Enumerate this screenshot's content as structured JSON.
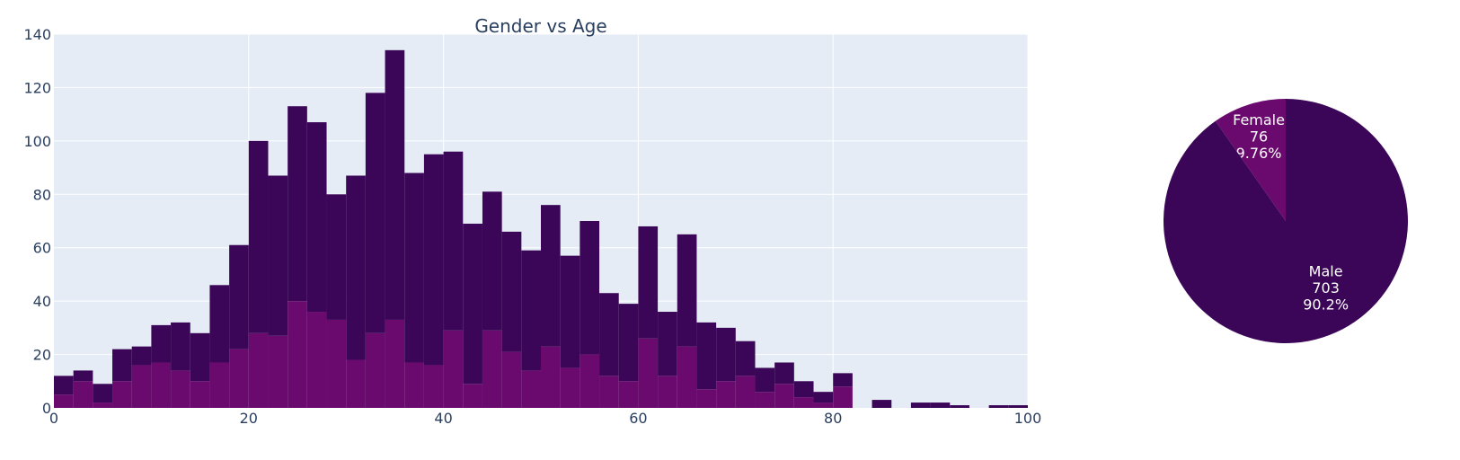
{
  "chart_data": [
    {
      "type": "bar",
      "subtype": "stacked-histogram",
      "title": "Gender vs Age",
      "xlabel": "",
      "ylabel": "",
      "xlim": [
        0,
        100
      ],
      "ylim": [
        0,
        140
      ],
      "bin_width": 2,
      "x": [
        0,
        2,
        4,
        6,
        8,
        10,
        12,
        14,
        16,
        18,
        20,
        22,
        24,
        26,
        28,
        30,
        32,
        34,
        36,
        38,
        40,
        42,
        44,
        46,
        48,
        50,
        52,
        54,
        56,
        58,
        60,
        62,
        64,
        66,
        68,
        70,
        72,
        74,
        76,
        78,
        80,
        82,
        84,
        86,
        88,
        90,
        92,
        94,
        96,
        98
      ],
      "series": [
        {
          "color": "#6a0a6e",
          "values": [
            5,
            10,
            2,
            10,
            16,
            17,
            14,
            10,
            17,
            22,
            28,
            27,
            40,
            36,
            33,
            18,
            28,
            33,
            17,
            16,
            29,
            9,
            29,
            21,
            14,
            23,
            15,
            20,
            12,
            10,
            26,
            12,
            23,
            7,
            10,
            12,
            6,
            9,
            4,
            2,
            8,
            0,
            0,
            0,
            0,
            0,
            0,
            0,
            0,
            0
          ]
        },
        {
          "color": "#3b0657",
          "values": [
            7,
            4,
            7,
            12,
            7,
            14,
            18,
            18,
            29,
            39,
            72,
            60,
            73,
            71,
            47,
            69,
            90,
            101,
            71,
            79,
            67,
            60,
            52,
            45,
            45,
            53,
            42,
            50,
            31,
            29,
            42,
            24,
            42,
            25,
            20,
            13,
            9,
            8,
            6,
            4,
            5,
            0,
            3,
            0,
            2,
            2,
            1,
            0,
            1,
            1
          ]
        }
      ],
      "xticks": [
        0,
        20,
        40,
        60,
        80,
        100
      ],
      "yticks": [
        0,
        20,
        40,
        60,
        80,
        100,
        120,
        140
      ],
      "grid": true,
      "legend": "none"
    },
    {
      "type": "pie",
      "slices": [
        {
          "label": "Female",
          "value": 76,
          "percent": "9.76%",
          "color": "#6a0a6e"
        },
        {
          "label": "Male",
          "value": 703,
          "percent": "90.2%",
          "color": "#3b0657"
        }
      ]
    }
  ],
  "style": {
    "plot_bg": "#e5ecf6",
    "grid_color": "#ffffff",
    "text_color": "#2a3f5f"
  }
}
